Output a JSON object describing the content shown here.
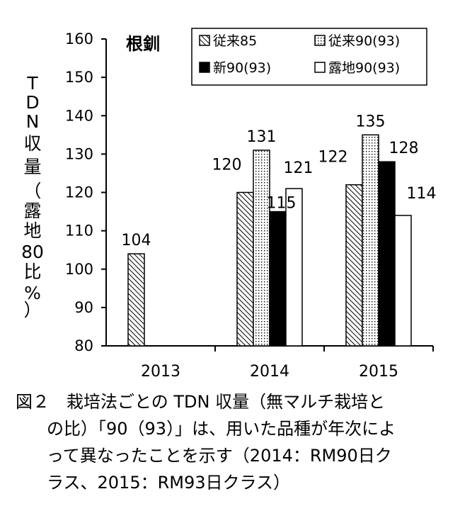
{
  "chart_data": {
    "type": "bar",
    "subtitle": "根釧",
    "ylabel": "TDN収量（露地80比%）",
    "ylabel_glyphs": [
      "T",
      "D",
      "N",
      "収",
      "量",
      "（",
      "露",
      "地",
      "80",
      "比",
      "%",
      "）"
    ],
    "ylim": [
      80,
      160
    ],
    "yticks": [
      80,
      90,
      100,
      110,
      120,
      130,
      140,
      150,
      160
    ],
    "ytick_labels": [
      "80",
      "90",
      "100",
      "110",
      "120",
      "130",
      "140",
      "150",
      "160"
    ],
    "categories": [
      "2013",
      "2014",
      "2015"
    ],
    "series": [
      {
        "name": "従来85",
        "values": [
          104,
          120,
          122
        ],
        "labels": [
          "104",
          "120",
          "122"
        ],
        "pattern": "hatch"
      },
      {
        "name": "従来90(93)",
        "values": [
          null,
          131,
          135
        ],
        "labels": [
          "",
          "131",
          "135"
        ],
        "pattern": "dots"
      },
      {
        "name": "新90(93)",
        "values": [
          null,
          115,
          128
        ],
        "labels": [
          "",
          "115",
          "128"
        ],
        "pattern": "solid"
      },
      {
        "name": "露地90(93)",
        "values": [
          null,
          121,
          114
        ],
        "labels": [
          "",
          "121",
          "114"
        ],
        "pattern": "white"
      }
    ],
    "legend": "top-right",
    "grid": false
  },
  "caption": {
    "lines": [
      "図２　栽培法ごとの TDN 収量（無マルチ栽培と",
      "の比）「90（93）」は、用いた品種が年次によ",
      "って異なったことを示す（2014：RM90日ク",
      "ラス、2015：RM93日クラス）"
    ]
  }
}
